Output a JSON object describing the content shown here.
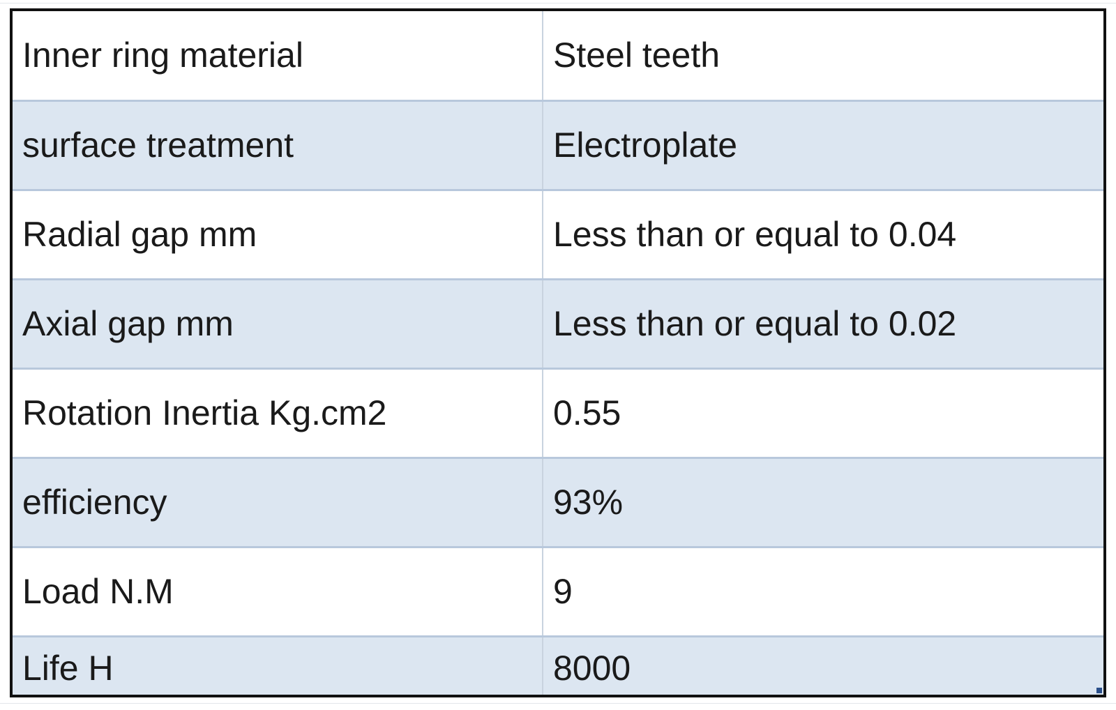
{
  "spec_table": {
    "rows": [
      {
        "label": "Inner ring material",
        "value": "Steel teeth"
      },
      {
        "label": "surface treatment",
        "value": "Electroplate"
      },
      {
        "label": "Radial gap mm",
        "value": "Less than or equal to 0.04"
      },
      {
        "label": "Axial gap mm",
        "value": "Less than or equal to 0.02"
      },
      {
        "label": "Rotation Inertia Kg.cm2",
        "value": "0.55"
      },
      {
        "label": "efficiency",
        "value": "93%"
      },
      {
        "label": "Load N.M",
        "value": "9"
      },
      {
        "label": "Life H",
        "value": "8000"
      }
    ]
  },
  "colors": {
    "alt_row": "#dce6f1",
    "border": "#111111",
    "row_divider": "#b8c8dc"
  }
}
